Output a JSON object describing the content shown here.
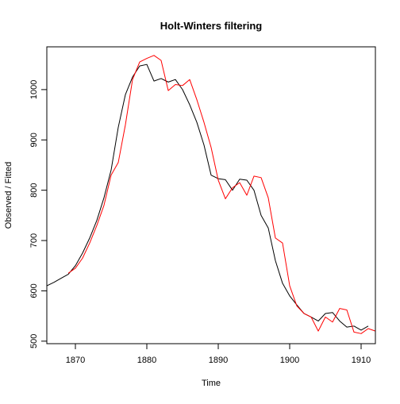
{
  "chart_data": {
    "type": "line",
    "title": "Holt-Winters filtering",
    "xlabel": "Time",
    "ylabel": "Observed / Fitted",
    "xlim": [
      1866,
      1912
    ],
    "ylim": [
      495,
      1085
    ],
    "xticks": [
      1870,
      1880,
      1890,
      1900,
      1910
    ],
    "yticks": [
      500,
      600,
      700,
      800,
      900,
      1000
    ],
    "grid": false,
    "legend": "none",
    "series": [
      {
        "id": "observed",
        "color": "#000000",
        "points": [
          [
            1866,
            610
          ],
          [
            1867,
            617
          ],
          [
            1868,
            625
          ],
          [
            1869,
            633
          ],
          [
            1870,
            650
          ],
          [
            1871,
            675
          ],
          [
            1872,
            705
          ],
          [
            1873,
            740
          ],
          [
            1874,
            785
          ],
          [
            1875,
            840
          ],
          [
            1876,
            925
          ],
          [
            1877,
            990
          ],
          [
            1878,
            1025
          ],
          [
            1879,
            1047
          ],
          [
            1880,
            1050
          ],
          [
            1881,
            1017
          ],
          [
            1882,
            1022
          ],
          [
            1883,
            1015
          ],
          [
            1884,
            1020
          ],
          [
            1885,
            1000
          ],
          [
            1886,
            970
          ],
          [
            1887,
            935
          ],
          [
            1888,
            890
          ],
          [
            1889,
            830
          ],
          [
            1890,
            823
          ],
          [
            1891,
            821
          ],
          [
            1892,
            800
          ],
          [
            1893,
            822
          ],
          [
            1894,
            820
          ],
          [
            1895,
            800
          ],
          [
            1896,
            750
          ],
          [
            1897,
            725
          ],
          [
            1898,
            660
          ],
          [
            1899,
            615
          ],
          [
            1900,
            590
          ],
          [
            1901,
            572
          ],
          [
            1902,
            555
          ],
          [
            1903,
            548
          ],
          [
            1904,
            540
          ],
          [
            1905,
            555
          ],
          [
            1906,
            557
          ],
          [
            1907,
            540
          ],
          [
            1908,
            528
          ],
          [
            1909,
            530
          ],
          [
            1910,
            522
          ],
          [
            1911,
            530
          ]
        ]
      },
      {
        "id": "fitted",
        "color": "#ff0000",
        "points": [
          [
            1869,
            635
          ],
          [
            1870,
            645
          ],
          [
            1871,
            665
          ],
          [
            1872,
            695
          ],
          [
            1873,
            730
          ],
          [
            1874,
            770
          ],
          [
            1875,
            830
          ],
          [
            1876,
            855
          ],
          [
            1877,
            930
          ],
          [
            1878,
            1020
          ],
          [
            1879,
            1055
          ],
          [
            1880,
            1062
          ],
          [
            1881,
            1068
          ],
          [
            1882,
            1058
          ],
          [
            1883,
            998
          ],
          [
            1884,
            1010
          ],
          [
            1885,
            1008
          ],
          [
            1886,
            1020
          ],
          [
            1887,
            980
          ],
          [
            1888,
            935
          ],
          [
            1889,
            885
          ],
          [
            1890,
            820
          ],
          [
            1891,
            783
          ],
          [
            1892,
            805
          ],
          [
            1893,
            815
          ],
          [
            1894,
            790
          ],
          [
            1895,
            828
          ],
          [
            1896,
            825
          ],
          [
            1897,
            785
          ],
          [
            1898,
            705
          ],
          [
            1899,
            695
          ],
          [
            1900,
            610
          ],
          [
            1901,
            570
          ],
          [
            1902,
            555
          ],
          [
            1903,
            548
          ],
          [
            1904,
            520
          ],
          [
            1905,
            548
          ],
          [
            1906,
            538
          ],
          [
            1907,
            565
          ],
          [
            1908,
            562
          ],
          [
            1909,
            518
          ],
          [
            1910,
            515
          ],
          [
            1911,
            525
          ],
          [
            1912,
            520
          ]
        ]
      }
    ]
  }
}
